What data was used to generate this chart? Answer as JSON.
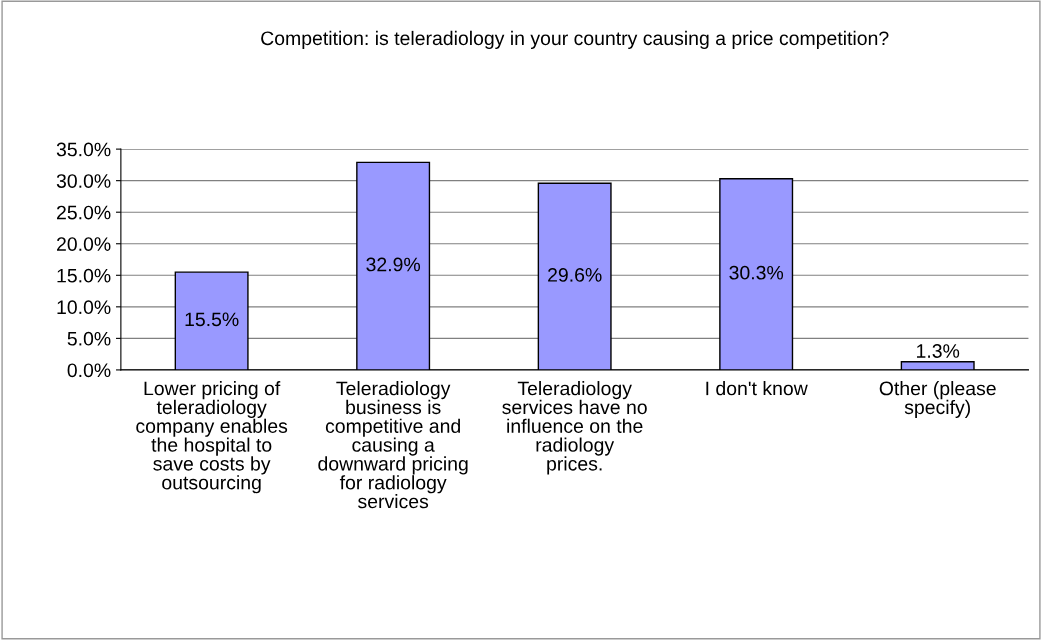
{
  "chart_data": {
    "type": "bar",
    "title": "Competition: is teleradiology in your country causing a price competition?",
    "categories": [
      "Lower pricing of teleradiology company enables the hospital to save costs by outsourcing",
      "Teleradiology business is competitive and causing a downward pricing for radiology services",
      "Teleradiology services have no influence on the radiology prices.",
      "I don't know",
      "Other (please specify)"
    ],
    "values": [
      15.5,
      32.9,
      29.6,
      30.3,
      1.3
    ],
    "value_labels": [
      "15.5%",
      "32.9%",
      "29.6%",
      "30.3%",
      "1.3%"
    ],
    "color": "#9999ff",
    "ylim": [
      0,
      35
    ],
    "yticks": [
      {
        "value": 0,
        "label": "0.0%"
      },
      {
        "value": 5,
        "label": "5.0%"
      },
      {
        "value": 10,
        "label": "10.0%"
      },
      {
        "value": 15,
        "label": "15.0%"
      },
      {
        "value": 20,
        "label": "20.0%"
      },
      {
        "value": 25,
        "label": "25.0%"
      },
      {
        "value": 30,
        "label": "30.0%"
      },
      {
        "value": 35,
        "label": "35.0%"
      }
    ],
    "grid": "y"
  }
}
